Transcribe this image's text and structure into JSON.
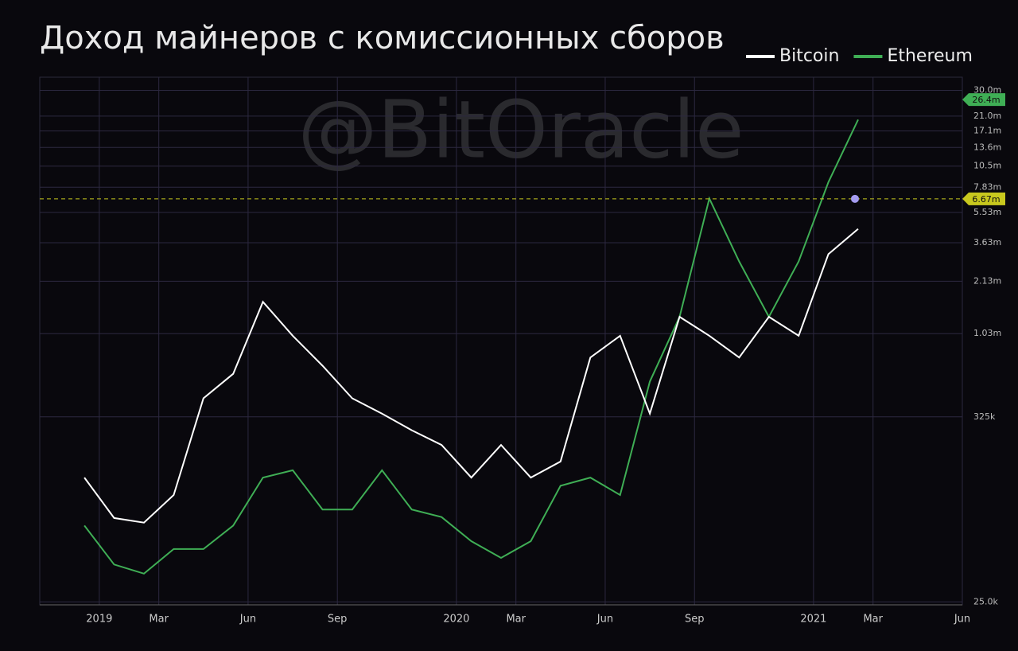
{
  "chart_data": {
    "type": "line",
    "title": "Доход майнеров с комиссионных сборов",
    "watermark": "@BitOracle",
    "log_scale": true,
    "grid": true,
    "legend": "top-right",
    "xlim": [
      "2018-11",
      "2021-06"
    ],
    "xticks": [
      {
        "value": "2019-01",
        "label": "2019"
      },
      {
        "value": "2019-03",
        "label": "Mar"
      },
      {
        "value": "2019-06",
        "label": "Jun"
      },
      {
        "value": "2019-09",
        "label": "Sep"
      },
      {
        "value": "2020-01",
        "label": "2020"
      },
      {
        "value": "2020-03",
        "label": "Mar"
      },
      {
        "value": "2020-06",
        "label": "Jun"
      },
      {
        "value": "2020-09",
        "label": "Sep"
      },
      {
        "value": "2021-01",
        "label": "2021"
      },
      {
        "value": "2021-03",
        "label": "Mar"
      },
      {
        "value": "2021-06",
        "label": "Jun"
      }
    ],
    "ylim": [
      24000,
      36000000
    ],
    "yticks": [
      {
        "value": 25000,
        "label": "25.0k"
      },
      {
        "value": 325000,
        "label": "325k"
      },
      {
        "value": 1030000,
        "label": "1.03m"
      },
      {
        "value": 2130000,
        "label": "2.13m"
      },
      {
        "value": 3630000,
        "label": "3.63m"
      },
      {
        "value": 5530000,
        "label": "5.53m"
      },
      {
        "value": 7830000,
        "label": "7.83m"
      },
      {
        "value": 10500000,
        "label": "10.5m"
      },
      {
        "value": 13600000,
        "label": "13.6m"
      },
      {
        "value": 17100000,
        "label": "17.1m"
      },
      {
        "value": 21000000,
        "label": "21.0m"
      },
      {
        "value": 30000000,
        "label": "30.0m"
      }
    ],
    "x": [
      "2018-12",
      "2019-01",
      "2019-02",
      "2019-03",
      "2019-04",
      "2019-05",
      "2019-06",
      "2019-07",
      "2019-08",
      "2019-09",
      "2019-10",
      "2019-11",
      "2019-12",
      "2020-01",
      "2020-02",
      "2020-03",
      "2020-04",
      "2020-05",
      "2020-06",
      "2020-07",
      "2020-08",
      "2020-09",
      "2020-10",
      "2020-11",
      "2020-12",
      "2021-01",
      "2021-02"
    ],
    "series": [
      {
        "name": "Bitcoin",
        "color": "#ffffff",
        "values": [
          140000,
          80000,
          75000,
          110000,
          420000,
          590000,
          1600000,
          1000000,
          660000,
          420000,
          340000,
          270000,
          220000,
          140000,
          220000,
          140000,
          175000,
          740000,
          1000000,
          340000,
          1300000,
          1000000,
          740000,
          1300000,
          1000000,
          3100000,
          4400000
        ]
      },
      {
        "name": "Ethereum",
        "color": "#3fae55",
        "values": [
          72000,
          42000,
          37000,
          52000,
          52000,
          72000,
          140000,
          155000,
          90000,
          90000,
          155000,
          90000,
          81000,
          58000,
          46000,
          58000,
          125000,
          140000,
          110000,
          530000,
          1300000,
          6700000,
          2800000,
          1300000,
          2800000,
          8400000,
          20000000
        ]
      }
    ],
    "price_lines": [
      {
        "value": 26400000,
        "label": "26.4m",
        "color": "#3fae55"
      },
      {
        "value": 6670000,
        "label": "6.67m",
        "color": "#c8c81e"
      }
    ]
  }
}
